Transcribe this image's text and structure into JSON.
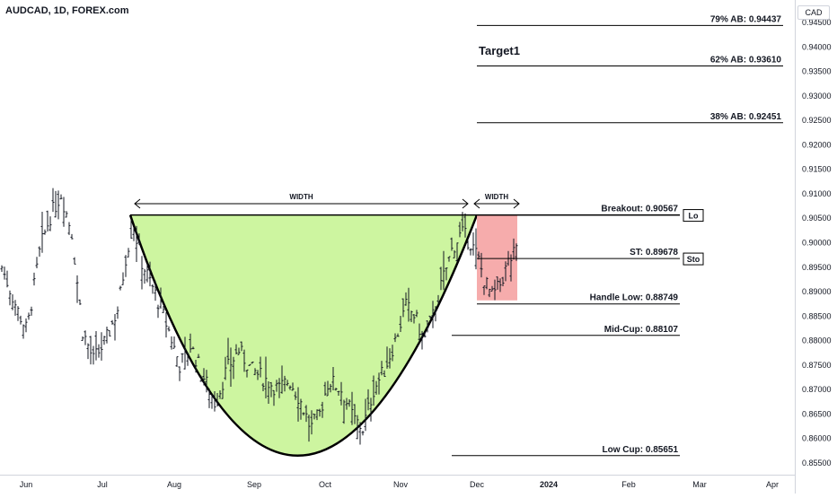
{
  "header": {
    "title": "AUDCAD, 1D, FOREX.com",
    "currency": "CAD"
  },
  "chart_data": {
    "type": "candlestick",
    "ylim": [
      0.8525,
      0.95
    ],
    "y_ticks": [
      "0.94500",
      "0.94000",
      "0.93500",
      "0.93000",
      "0.92500",
      "0.92000",
      "0.91500",
      "0.91000",
      "0.90500",
      "0.90000",
      "0.89500",
      "0.89000",
      "0.88500",
      "0.88000",
      "0.87500",
      "0.87000",
      "0.86500",
      "0.86000",
      "0.85500"
    ],
    "x_ticks": [
      "Jun",
      "Jul",
      "Aug",
      "Sep",
      "Oct",
      "Nov",
      "Dec",
      "2024",
      "Feb",
      "Mar",
      "Apr"
    ],
    "levels": [
      {
        "label": "79% AB: 0.94437",
        "value": 0.94437
      },
      {
        "label": "62% AB: 0.93610",
        "value": 0.9361
      },
      {
        "label": "38% AB: 0.92451",
        "value": 0.92451
      },
      {
        "label": "Breakout: 0.90567",
        "value": 0.90567
      },
      {
        "label": "ST: 0.89678",
        "value": 0.89678
      },
      {
        "label": "Handle Low: 0.88749",
        "value": 0.88749
      },
      {
        "label": "Mid-Cup: 0.88107",
        "value": 0.88107
      },
      {
        "label": "Low Cup: 0.85651",
        "value": 0.85651
      }
    ],
    "annotations": {
      "target": "Target1",
      "cup_width": "WIDTH",
      "handle_width": "WIDTH",
      "tag_lo": "Lo",
      "tag_sto": "Sto"
    },
    "cup": {
      "rim": 0.90567,
      "bottom": 0.85651
    },
    "handle": {
      "top": 0.90567,
      "bottom": 0.88749
    },
    "colors": {
      "cup_fill": "#cdf5a0",
      "handle_fill": "#f5a3a3",
      "line": "#000000",
      "bar": "#131722"
    }
  }
}
